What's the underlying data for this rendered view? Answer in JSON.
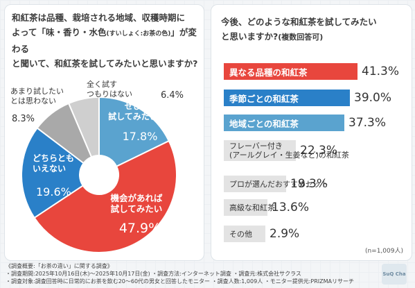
{
  "left_question": {
    "line1": "和紅茶は品種、栽培される地域、収穫時期に",
    "line2a": "よって「味・香り・水色",
    "line2b": "(すいしょく:お茶の色)",
    "line2c": "」が変わる",
    "line3": "と聞いて、和紅茶を試してみたいと思いますか?"
  },
  "right_question": {
    "line1": "今後、どのような和紅茶を試してみたい",
    "line2": "と思いますか?",
    "line2_note": "(複数回答可)"
  },
  "chart_data": [
    {
      "type": "pie",
      "slices": [
        {
          "label_lines": [
            "ぜひ",
            "試してみたい"
          ],
          "value": 17.8,
          "color": "#5aa3cf",
          "label_color": "#ffffff"
        },
        {
          "label_lines": [
            "機会があれば",
            "試してみたい"
          ],
          "value": 47.9,
          "color": "#e8463d",
          "label_color": "#ffffff"
        },
        {
          "label_lines": [
            "どちらとも",
            "いえない"
          ],
          "value": 19.6,
          "color": "#2a80c8",
          "label_color": "#ffffff"
        },
        {
          "label_lines": [
            "あまり試したい",
            "とは思わない"
          ],
          "value": 8.3,
          "color": "#a9a9a9",
          "label_color": "#333333"
        },
        {
          "label_lines": [
            "全く試す",
            "つもりはない"
          ],
          "value": 6.4,
          "color": "#cfcfcf",
          "label_color": "#333333"
        }
      ]
    },
    {
      "type": "bar",
      "orientation": "horizontal",
      "categories": [
        "異なる品種の和紅茶",
        "季節ごとの和紅茶",
        "地域ごとの和紅茶",
        "フレーバー付き(アールグレイ・生姜など)の和紅茶",
        "プロが選んだおすすめセット",
        "高級な和紅茶",
        "その他"
      ],
      "category_lines": [
        [
          "異なる品種の和紅茶"
        ],
        [
          "季節ごとの和紅茶"
        ],
        [
          "地域ごとの和紅茶"
        ],
        [
          "フレーバー付き",
          "(アールグレイ・生姜など)の和紅茶"
        ],
        [
          "プロが選んだおすすめセット"
        ],
        [
          "高級な和紅茶"
        ],
        [
          "その他"
        ]
      ],
      "values": [
        41.3,
        39.0,
        37.3,
        22.3,
        19.3,
        13.6,
        2.9
      ],
      "colors": [
        "#e8463d",
        "#2a80c8",
        "#5aa3cf",
        "#e3e3e3",
        "#e3e3e3",
        "#e3e3e3",
        "#e3e3e3"
      ]
    }
  ],
  "sample_note": "(n=1,009人)",
  "footer": {
    "line1": "《調査概要:「お茶の違い」に関する調査》",
    "line2": "・調査期間:2025年10月16日(木)〜2025年10月17日(金) ・調査方法:インターネット調査 ・調査元:株式会社サクラス",
    "line3": "・調査対象:調査回答時に日常的にお茶を飲む20〜60代の男女と回答したモニター ・調査人数:1,009人 ・モニター提供元:PRIZMAリサーチ"
  },
  "logo_text": "SuQ Cha"
}
